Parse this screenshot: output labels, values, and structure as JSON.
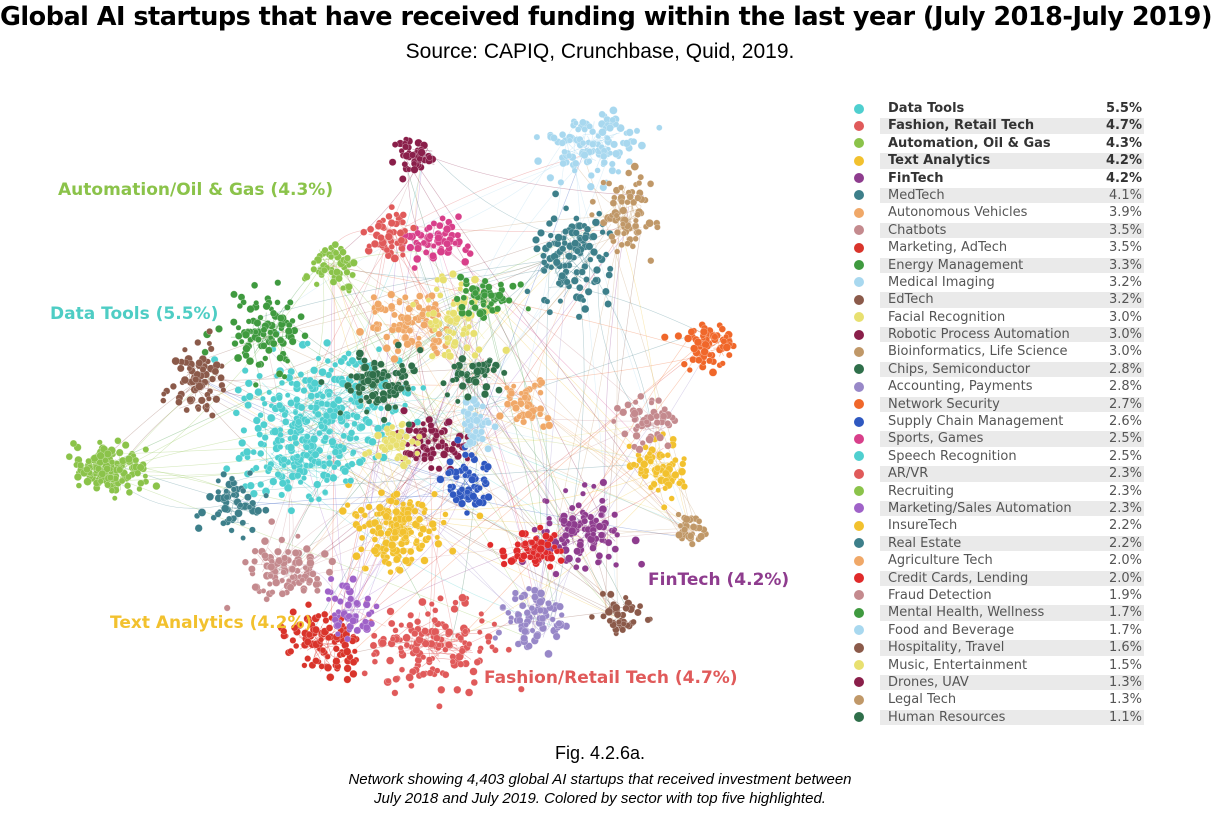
{
  "header": {
    "title": "Global AI startups that have received funding within the last year (July 2018-July 2019)",
    "source": "Source: CAPIQ, Crunchbase, Quid, 2019."
  },
  "cluster_labels": {
    "automation": "Automation/Oil & Gas (4.3%)",
    "data_tools": "Data Tools (5.5%)",
    "text_analytics": "Text Analytics (4.2%)",
    "fintech": "FinTech (4.2%)",
    "fashion": "Fashion/Retail Tech (4.7%)"
  },
  "colors": {
    "automation": "#8bc34a",
    "data_tools": "#4ecdc4",
    "text_analytics": "#f2c12e",
    "fintech": "#8e3c8e",
    "fashion": "#e05a5a"
  },
  "chart_data": {
    "type": "scatter",
    "title": "Global AI startups that have received funding within the last year (July 2018-July 2019)",
    "subtitle": "Source: CAPIQ, Crunchbase, Quid, 2019.",
    "total_startups": 4403,
    "sectors": [
      {
        "name": "Data Tools",
        "share": "5.5%",
        "color": "#4fcfcf",
        "top": true
      },
      {
        "name": "Fashion, Retail Tech",
        "share": "4.7%",
        "color": "#e05a5a",
        "top": true
      },
      {
        "name": "Automation, Oil & Gas",
        "share": "4.3%",
        "color": "#8bc34a",
        "top": true
      },
      {
        "name": "Text Analytics",
        "share": "4.2%",
        "color": "#f2c12e",
        "top": true
      },
      {
        "name": "FinTech",
        "share": "4.2%",
        "color": "#8e3c8e",
        "top": true
      },
      {
        "name": "MedTech",
        "share": "4.1%",
        "color": "#3d7f8a",
        "top": false
      },
      {
        "name": "Autonomous Vehicles",
        "share": "3.9%",
        "color": "#f0a868",
        "top": false
      },
      {
        "name": "Chatbots",
        "share": "3.5%",
        "color": "#c48a8e",
        "top": false
      },
      {
        "name": "Marketing, AdTech",
        "share": "3.5%",
        "color": "#d9342b",
        "top": false
      },
      {
        "name": "Energy Management",
        "share": "3.3%",
        "color": "#3f9a3f",
        "top": false
      },
      {
        "name": "Medical Imaging",
        "share": "3.2%",
        "color": "#a8d8ef",
        "top": false
      },
      {
        "name": "EdTech",
        "share": "3.2%",
        "color": "#8b5a4a",
        "top": false
      },
      {
        "name": "Facial Recognition",
        "share": "3.0%",
        "color": "#e8e070",
        "top": false
      },
      {
        "name": "Robotic Process Automation",
        "share": "3.0%",
        "color": "#8a1f4a",
        "top": false
      },
      {
        "name": "Bioinformatics, Life Science",
        "share": "3.0%",
        "color": "#c09868",
        "top": false
      },
      {
        "name": "Chips, Semiconductor",
        "share": "2.8%",
        "color": "#2f6f4a",
        "top": false
      },
      {
        "name": "Accounting, Payments",
        "share": "2.8%",
        "color": "#9888c8",
        "top": false
      },
      {
        "name": "Network Security",
        "share": "2.7%",
        "color": "#f0672a",
        "top": false
      },
      {
        "name": "Supply Chain Management",
        "share": "2.6%",
        "color": "#2f58c0",
        "top": false
      },
      {
        "name": "Sports, Games",
        "share": "2.5%",
        "color": "#d83f8a",
        "top": false
      },
      {
        "name": "Speech Recognition",
        "share": "2.5%",
        "color": "#4fcfcf",
        "top": false
      },
      {
        "name": "AR/VR",
        "share": "2.3%",
        "color": "#e05a5a",
        "top": false
      },
      {
        "name": "Recruiting",
        "share": "2.3%",
        "color": "#8bc34a",
        "top": false
      },
      {
        "name": "Marketing/Sales Automation",
        "share": "2.3%",
        "color": "#9f62c8",
        "top": false
      },
      {
        "name": "InsureTech",
        "share": "2.2%",
        "color": "#f2c12e",
        "top": false
      },
      {
        "name": "Real Estate",
        "share": "2.2%",
        "color": "#3d7f8a",
        "top": false
      },
      {
        "name": "Agriculture Tech",
        "share": "2.0%",
        "color": "#f0a868",
        "top": false
      },
      {
        "name": "Credit Cards, Lending",
        "share": "2.0%",
        "color": "#e02a2a",
        "top": false
      },
      {
        "name": "Fraud Detection",
        "share": "1.9%",
        "color": "#c48a8e",
        "top": false
      },
      {
        "name": "Mental Health, Wellness",
        "share": "1.7%",
        "color": "#3f9a3f",
        "top": false
      },
      {
        "name": "Food and Beverage",
        "share": "1.7%",
        "color": "#a8d8ef",
        "top": false
      },
      {
        "name": "Hospitality, Travel",
        "share": "1.6%",
        "color": "#8b5a4a",
        "top": false
      },
      {
        "name": "Music, Entertainment",
        "share": "1.5%",
        "color": "#e8e070",
        "top": false
      },
      {
        "name": "Drones, UAV",
        "share": "1.3%",
        "color": "#8a1f4a",
        "top": false
      },
      {
        "name": "Legal Tech",
        "share": "1.3%",
        "color": "#c09868",
        "top": false
      },
      {
        "name": "Human Resources",
        "share": "1.1%",
        "color": "#2f6f4a",
        "top": false
      }
    ]
  },
  "figure": {
    "number": "Fig. 4.2.6a.",
    "caption_line1": "Network showing 4,403 global AI startups that received investment between",
    "caption_line2": "July 2018 and July 2019. Colored by sector with top five highlighted."
  }
}
